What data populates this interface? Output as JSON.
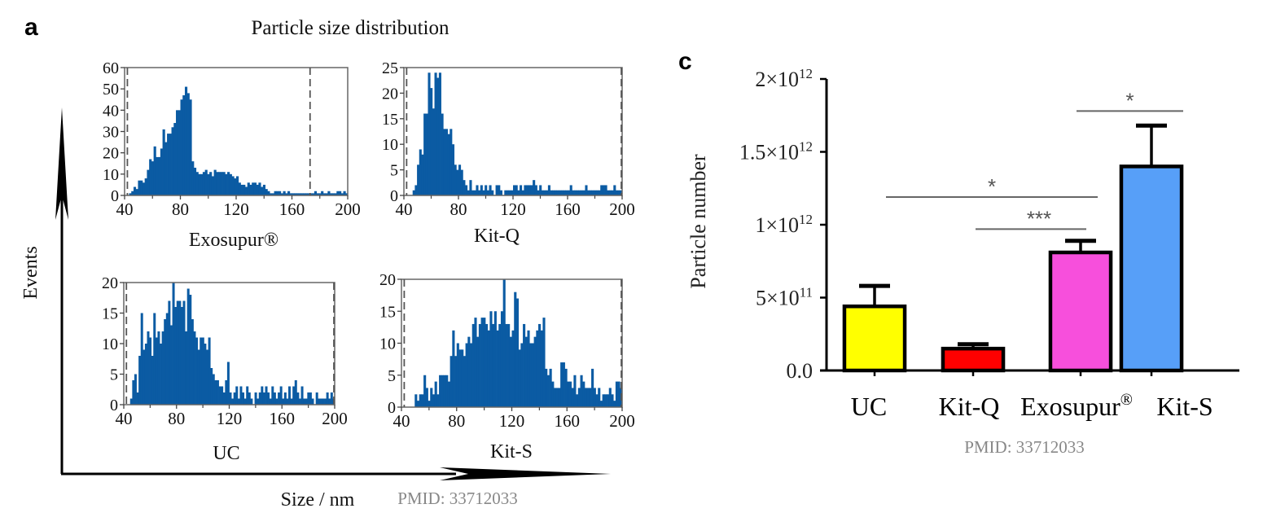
{
  "panel_a": {
    "label": "a",
    "title": "Particle size distribution",
    "y_axis_label": "Events",
    "x_axis_label": "Size / nm",
    "watermark": "PMID: 33712033"
  },
  "panel_c": {
    "label": "c",
    "watermark": "PMID: 33712033"
  },
  "chart_data": [
    {
      "type": "bar",
      "name": "Exosupur® histogram",
      "title": "Exosupur®",
      "xlabel": "Size / nm",
      "ylabel": "Events",
      "xlim": [
        40,
        200
      ],
      "ylim": [
        0,
        60
      ],
      "xticks": [
        "40",
        "80",
        "120",
        "160",
        "200"
      ],
      "yticks": [
        "0",
        "10",
        "20",
        "30",
        "40",
        "50",
        "60"
      ],
      "color": "#0b5ba3",
      "gate_lines": [
        42,
        173
      ],
      "bin_start": 40,
      "bin_width": 1.6,
      "values": [
        0,
        0,
        1,
        2,
        4,
        3,
        7,
        7,
        6,
        8,
        12,
        17,
        16,
        23,
        18,
        18,
        22,
        31,
        25,
        29,
        29,
        32,
        34,
        40,
        40,
        45,
        47,
        51,
        48,
        45,
        16,
        13,
        11,
        10,
        10,
        11,
        12,
        10,
        11,
        9,
        12,
        11,
        11,
        11,
        11,
        10,
        11,
        10,
        9,
        8,
        9,
        6,
        5,
        5,
        4,
        6,
        5,
        6,
        6,
        5,
        6,
        4,
        5,
        3,
        2,
        1,
        1,
        2,
        2,
        2,
        1,
        2,
        1,
        2,
        1,
        1,
        1,
        1,
        1,
        1,
        1,
        1,
        1,
        1,
        1,
        2,
        1,
        1,
        2,
        1,
        1,
        2,
        1,
        1,
        1,
        2,
        2,
        1,
        2,
        1
      ]
    },
    {
      "type": "bar",
      "name": "Kit-Q histogram",
      "title": "Kit-Q",
      "xlabel": "Size / nm",
      "ylabel": "Events",
      "xlim": [
        40,
        200
      ],
      "ylim": [
        0,
        25
      ],
      "xticks": [
        "40",
        "80",
        "120",
        "160",
        "200"
      ],
      "yticks": [
        "0",
        "5",
        "10",
        "15",
        "20",
        "25"
      ],
      "color": "#0b5ba3",
      "gate_lines": [
        42,
        200
      ],
      "bin_start": 40,
      "bin_width": 1.6,
      "values": [
        0,
        0,
        0,
        0,
        1,
        2,
        6,
        9,
        8,
        16,
        16,
        24,
        21,
        17,
        24,
        23,
        24,
        16,
        13,
        13,
        12,
        13,
        10,
        6,
        5,
        6,
        5,
        3,
        2,
        1,
        3,
        1,
        1,
        2,
        1,
        2,
        1,
        2,
        1,
        2,
        1,
        0,
        2,
        2,
        1,
        0,
        1,
        1,
        1,
        1,
        2,
        2,
        1,
        2,
        1,
        2,
        2,
        2,
        2,
        3,
        2,
        1,
        2,
        1,
        1,
        1,
        2,
        1,
        1,
        1,
        1,
        1,
        1,
        1,
        1,
        1,
        2,
        1,
        1,
        1,
        1,
        1,
        1,
        2,
        1,
        1,
        1,
        1,
        1,
        1,
        2,
        2,
        2,
        1,
        1,
        1,
        2,
        1,
        1,
        1
      ]
    },
    {
      "type": "bar",
      "name": "UC histogram",
      "title": "UC",
      "xlabel": "Size / nm",
      "ylabel": "Events",
      "xlim": [
        40,
        200
      ],
      "ylim": [
        0,
        20
      ],
      "xticks": [
        "40",
        "80",
        "120",
        "160",
        "200"
      ],
      "yticks": [
        "0",
        "5",
        "10",
        "15",
        "20"
      ],
      "color": "#0b5ba3",
      "gate_lines": [
        42,
        200
      ],
      "bin_start": 40,
      "bin_width": 1.6,
      "values": [
        0,
        0,
        0,
        1,
        4,
        5,
        2,
        8,
        15,
        9,
        10,
        12,
        11,
        8,
        15,
        11,
        12,
        10,
        12,
        14,
        15,
        17,
        13,
        20,
        16,
        17,
        17,
        16,
        17,
        12,
        19,
        18,
        14,
        12,
        11,
        9,
        11,
        11,
        10,
        9,
        11,
        6,
        5,
        4,
        4,
        3,
        3,
        2,
        4,
        7,
        2,
        1,
        2,
        3,
        1,
        3,
        2,
        1,
        3,
        2,
        1,
        0,
        2,
        1,
        2,
        3,
        2,
        3,
        2,
        1,
        3,
        2,
        1,
        2,
        3,
        1,
        2,
        1,
        3,
        1,
        3,
        4,
        2,
        1,
        3,
        1,
        1,
        2,
        2,
        1,
        0,
        2,
        1,
        1,
        1,
        1,
        2,
        1,
        2,
        1
      ]
    },
    {
      "type": "bar",
      "name": "Kit-S histogram",
      "title": "Kit-S",
      "xlabel": "Size / nm",
      "ylabel": "Events",
      "xlim": [
        40,
        200
      ],
      "ylim": [
        0,
        20
      ],
      "xticks": [
        "40",
        "80",
        "120",
        "160",
        "200"
      ],
      "yticks": [
        "0",
        "5",
        "10",
        "15",
        "20"
      ],
      "color": "#0b5ba3",
      "gate_lines": [
        42,
        200
      ],
      "bin_start": 40,
      "bin_width": 1.6,
      "values": [
        0,
        0,
        0,
        0,
        0,
        0,
        2,
        1,
        2,
        2,
        5,
        3,
        1,
        3,
        2,
        4,
        2,
        5,
        5,
        5,
        5,
        4,
        8,
        12,
        8,
        10,
        9,
        9,
        8,
        10,
        11,
        10,
        13,
        14,
        11,
        13,
        14,
        14,
        13,
        12,
        15,
        13,
        15,
        12,
        13,
        15,
        20,
        13,
        13,
        11,
        12,
        18,
        17,
        9,
        10,
        13,
        11,
        12,
        10,
        10,
        11,
        12,
        13,
        12,
        14,
        6,
        5,
        6,
        4,
        3,
        3,
        3,
        7,
        7,
        6,
        4,
        4,
        3,
        5,
        2,
        3,
        5,
        4,
        3,
        3,
        3,
        6,
        3,
        2,
        3,
        1,
        2,
        2,
        2,
        3,
        2,
        1,
        4,
        4,
        3
      ]
    },
    {
      "type": "bar",
      "name": "Particle number bar chart",
      "title": "",
      "xlabel": "",
      "ylabel": "Particle number",
      "ylim": [
        0,
        2000000000000.0
      ],
      "yticks": [
        "0.0",
        "5×10¹¹",
        "1×10¹²",
        "1.5×10¹²",
        "2×10¹²"
      ],
      "ytick_values": [
        0,
        500000000000.0,
        1000000000000.0,
        1500000000000.0,
        2000000000000.0
      ],
      "categories": [
        "UC",
        "Kit-Q",
        "Exosupur®",
        "Kit-S"
      ],
      "values": [
        440000000000.0,
        150000000000.0,
        810000000000.0,
        1400000000000.0
      ],
      "errors": [
        140000000000.0,
        30000000000.0,
        80000000000.0,
        280000000000.0
      ],
      "colors": [
        "#ffff00",
        "#ff0000",
        "#f74fdc",
        "#579ff8"
      ],
      "significance": [
        {
          "from": "UC",
          "to": "Exosupur®",
          "label": "*",
          "y": 1190000000000.0
        },
        {
          "from": "Kit-Q",
          "to": "Exosupur®",
          "label": "***",
          "y": 970000000000.0
        },
        {
          "from": "Exosupur®",
          "to": "Kit-S",
          "label": "*",
          "y": 1780000000000.0
        }
      ]
    }
  ]
}
